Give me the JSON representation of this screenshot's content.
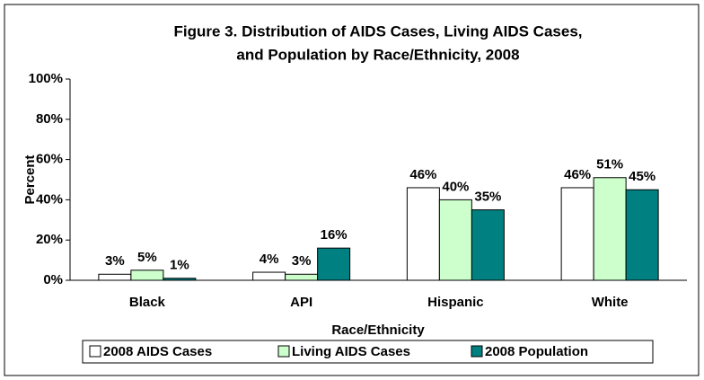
{
  "chart_data": {
    "type": "bar",
    "title": [
      "Figure 3. Distribution of AIDS Cases, Living AIDS Cases,",
      "and Population by Race/Ethnicity, 2008"
    ],
    "x_label": "Race/Ethnicity",
    "y_label": "Percent",
    "categories": [
      "Black",
      "API",
      "Hispanic",
      "White"
    ],
    "series": [
      {
        "name": "2008 AIDS Cases",
        "color": "#ffffff",
        "values": [
          3,
          4,
          46,
          46
        ],
        "value_labels": [
          "3%",
          "4%",
          "46%",
          "46%"
        ]
      },
      {
        "name": "Living AIDS Cases",
        "color": "#ccffcc",
        "values": [
          5,
          3,
          40,
          51
        ],
        "value_labels": [
          "5%",
          "3%",
          "40%",
          "51%"
        ]
      },
      {
        "name": "2008 Population",
        "color": "#008080",
        "values": [
          1,
          16,
          35,
          45
        ],
        "value_labels": [
          "1%",
          "16%",
          "35%",
          "45%"
        ]
      }
    ],
    "ylim": [
      0,
      100
    ],
    "yticks": [
      {
        "value": 0,
        "label": "0%"
      },
      {
        "value": 20,
        "label": "20%"
      },
      {
        "value": 40,
        "label": "40%"
      },
      {
        "value": 60,
        "label": "60%"
      },
      {
        "value": 80,
        "label": "80%"
      },
      {
        "value": 100,
        "label": "100%"
      }
    ],
    "legend": "bottom"
  }
}
